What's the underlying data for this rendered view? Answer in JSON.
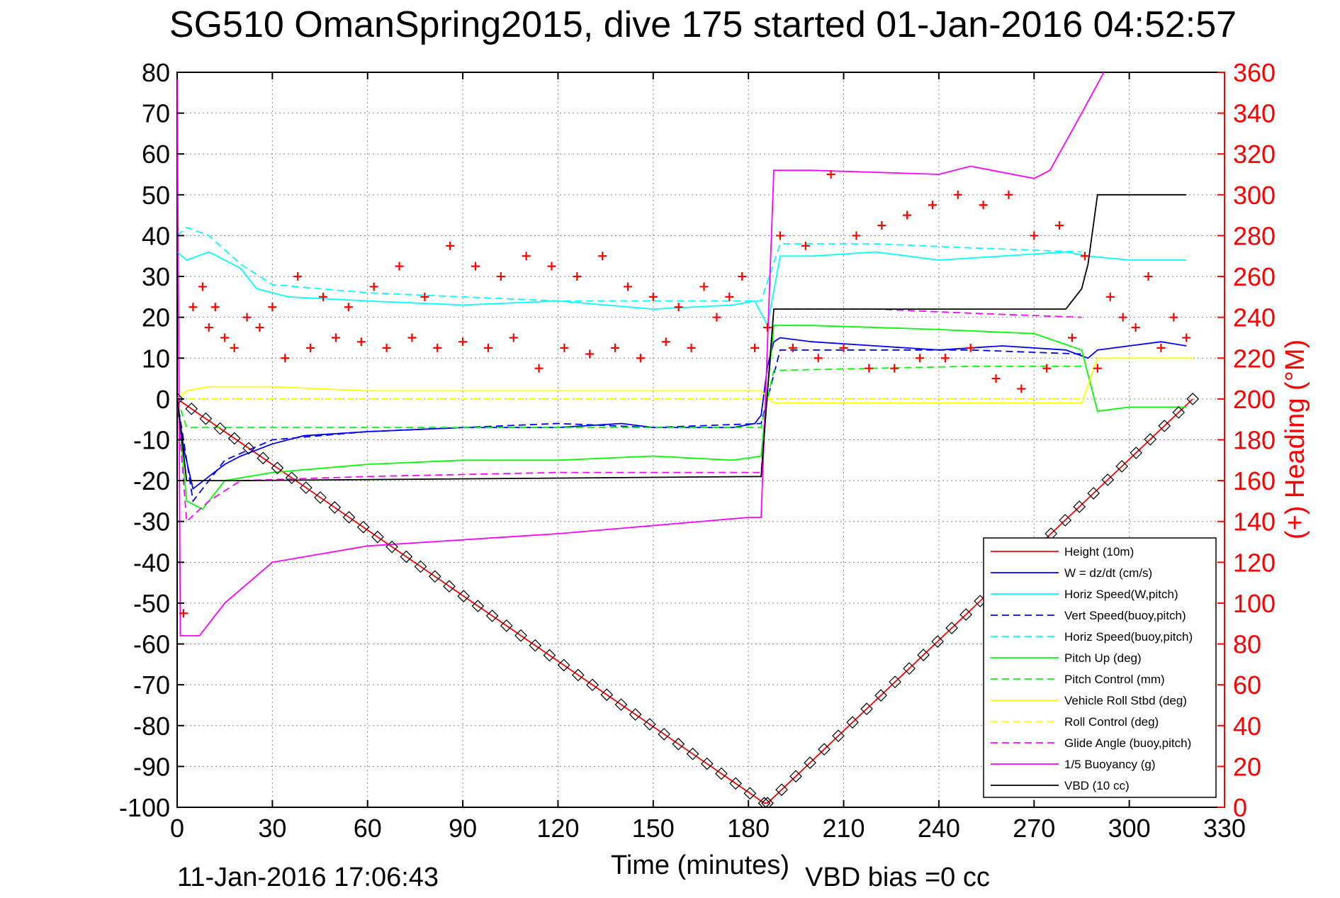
{
  "chart_data": {
    "type": "line",
    "title": "SG510 OmanSpring2015, dive 175 started 01-Jan-2016 04:52:57",
    "xlabel": "Time (minutes)",
    "ylabel_right": "(+) Heading (°M)",
    "footer_left": "11-Jan-2016 17:06:43",
    "footer_right": "VBD bias =0 cc",
    "xlim": [
      0,
      330
    ],
    "ylim_left": [
      -100,
      80
    ],
    "ylim_right": [
      0,
      360
    ],
    "x_ticks": [
      "0",
      "30",
      "60",
      "90",
      "120",
      "150",
      "180",
      "210",
      "240",
      "270",
      "300",
      "330"
    ],
    "y_ticks_left": [
      "80",
      "70",
      "60",
      "50",
      "40",
      "30",
      "20",
      "10",
      "0",
      "-10",
      "-20",
      "-30",
      "-40",
      "-50",
      "-60",
      "-70",
      "-80",
      "-90",
      "-100"
    ],
    "y_ticks_right": [
      "360",
      "340",
      "320",
      "300",
      "280",
      "260",
      "240",
      "220",
      "200",
      "180",
      "160",
      "140",
      "120",
      "100",
      "80",
      "60",
      "40",
      "20",
      "0"
    ],
    "grid": true,
    "legend_position": "bottom-right",
    "colors": {
      "height": "#ff0000",
      "w": "#0000ff",
      "horiz_speed": "#00ffff",
      "pitch": "#00ff00",
      "roll": "#ffff00",
      "glide": "#ff00ff",
      "buoyancy": "#ff00ff",
      "vbd": "#000000",
      "heading": "#ff0000",
      "right_axis": "#ff0000"
    },
    "series": [
      {
        "name": "Height (10m)",
        "color": "#ff0000",
        "dash": "solid",
        "x": [
          0,
          185,
          186,
          320
        ],
        "y": [
          0,
          -99,
          -99,
          0
        ]
      },
      {
        "name": "W = dz/dt (cm/s)",
        "color": "#0000ff",
        "dash": "solid",
        "x": [
          0,
          2,
          5,
          10,
          15,
          20,
          30,
          40,
          60,
          90,
          120,
          140,
          150,
          175,
          182,
          184,
          186,
          188,
          190,
          200,
          220,
          240,
          260,
          280,
          287,
          290,
          300,
          310,
          318
        ],
        "y": [
          0,
          -12,
          -22,
          -19,
          -16,
          -14,
          -11,
          -9,
          -8,
          -7,
          -7,
          -6,
          -7,
          -7,
          -6,
          -4,
          8,
          14,
          15,
          14,
          13,
          12,
          13,
          12,
          10,
          12,
          13,
          14,
          13
        ]
      },
      {
        "name": "Horiz Speed(W,pitch)",
        "color": "#00ffff",
        "dash": "solid",
        "x": [
          0,
          3,
          10,
          20,
          25,
          35,
          60,
          90,
          120,
          150,
          175,
          182,
          186,
          190,
          200,
          220,
          240,
          260,
          280,
          287,
          300,
          318
        ],
        "y": [
          36,
          34,
          36,
          32,
          27,
          25,
          24,
          23,
          24,
          22,
          23,
          24,
          18,
          35,
          35,
          36,
          34,
          35,
          36,
          35,
          34,
          34
        ]
      },
      {
        "name": "Vert Speed(buoy,pitch)",
        "color": "#0000ff",
        "dash": "dashed",
        "x": [
          0,
          5,
          15,
          30,
          60,
          90,
          120,
          150,
          184,
          190,
          220,
          250,
          285
        ],
        "y": [
          0,
          -25,
          -15,
          -10,
          -8,
          -7,
          -6,
          -7,
          -6,
          12,
          12,
          12,
          11
        ]
      },
      {
        "name": "Horiz Speed(buoy,pitch)",
        "color": "#00ffff",
        "dash": "dashed",
        "x": [
          0,
          3,
          10,
          20,
          30,
          60,
          90,
          120,
          150,
          184,
          190,
          220,
          250,
          285
        ],
        "y": [
          40,
          42,
          40,
          33,
          28,
          26,
          25,
          24,
          24,
          24,
          38,
          38,
          37,
          36
        ]
      },
      {
        "name": "Pitch Up (deg)",
        "color": "#00ff00",
        "dash": "solid",
        "x": [
          0,
          3,
          8,
          15,
          30,
          60,
          90,
          120,
          150,
          175,
          184,
          188,
          200,
          240,
          270,
          285,
          290,
          300,
          318
        ],
        "y": [
          0,
          -25,
          -27,
          -20,
          -18,
          -16,
          -15,
          -15,
          -14,
          -15,
          -14,
          18,
          18,
          17,
          16,
          12,
          -3,
          -2,
          -2
        ]
      },
      {
        "name": "Pitch Control (mm)",
        "color": "#00ff00",
        "dash": "dashed",
        "x": [
          0,
          3,
          30,
          184,
          188,
          250,
          285
        ],
        "y": [
          0,
          -7,
          -7,
          -7,
          7,
          8,
          8
        ]
      },
      {
        "name": "Vehicle Roll Stbd (deg)",
        "color": "#ffff00",
        "dash": "solid",
        "x": [
          0,
          3,
          10,
          30,
          60,
          90,
          120,
          150,
          184,
          188,
          220,
          250,
          285,
          290,
          320
        ],
        "y": [
          0,
          2,
          3,
          3,
          2,
          2,
          2,
          2,
          2,
          -1,
          -1,
          -1,
          -1,
          10,
          10
        ]
      },
      {
        "name": "Roll Control (deg)",
        "color": "#ffff00",
        "dash": "dashed",
        "x": [
          0,
          184,
          188,
          285
        ],
        "y": [
          0,
          0,
          0,
          0
        ]
      },
      {
        "name": "Glide Angle (buoy,pitch)",
        "color": "#ff00ff",
        "dash": "dashed",
        "x": [
          0,
          3,
          10,
          20,
          60,
          120,
          184,
          188,
          220,
          250,
          285
        ],
        "y": [
          0,
          -30,
          -25,
          -20,
          -19,
          -18,
          -18,
          22,
          22,
          21,
          20
        ]
      },
      {
        "name": "1/5 Buoyancy (g)",
        "color": "#ff00ff",
        "dash": "solid",
        "x": [
          0,
          1,
          7,
          15,
          30,
          60,
          120,
          180,
          184,
          188,
          200,
          240,
          250,
          270,
          275,
          285,
          292
        ],
        "y": [
          80,
          -58,
          -58,
          -50,
          -40,
          -36,
          -33,
          -29,
          -29,
          56,
          56,
          55,
          57,
          54,
          56,
          70,
          80
        ]
      },
      {
        "name": "VBD (10 cc)",
        "color": "#000000",
        "dash": "solid",
        "x": [
          0,
          3,
          20,
          184,
          188,
          280,
          285,
          287,
          290,
          318
        ],
        "y": [
          0,
          -20,
          -20,
          -19,
          22,
          22,
          27,
          33,
          50,
          50
        ]
      }
    ],
    "heading_series": {
      "name": "(+) Heading (°M)",
      "color": "#ff0000",
      "x": [
        2,
        5,
        8,
        10,
        12,
        15,
        18,
        22,
        26,
        30,
        34,
        38,
        42,
        46,
        50,
        54,
        58,
        62,
        66,
        70,
        74,
        78,
        82,
        86,
        90,
        94,
        98,
        102,
        106,
        110,
        114,
        118,
        122,
        126,
        130,
        134,
        138,
        142,
        146,
        150,
        154,
        158,
        162,
        166,
        170,
        174,
        178,
        182,
        186,
        190,
        194,
        198,
        202,
        206,
        210,
        214,
        218,
        222,
        226,
        230,
        234,
        238,
        242,
        246,
        250,
        254,
        258,
        262,
        266,
        270,
        274,
        278,
        282,
        286,
        290,
        294,
        298,
        302,
        306,
        310,
        314,
        318
      ],
      "y": [
        95,
        245,
        255,
        235,
        245,
        230,
        225,
        240,
        235,
        245,
        220,
        260,
        225,
        250,
        230,
        245,
        228,
        255,
        225,
        265,
        230,
        250,
        225,
        275,
        228,
        265,
        225,
        260,
        230,
        270,
        215,
        265,
        225,
        260,
        222,
        270,
        225,
        255,
        220,
        250,
        228,
        245,
        225,
        255,
        240,
        250,
        260,
        225,
        235,
        280,
        225,
        275,
        220,
        310,
        225,
        280,
        215,
        285,
        215,
        290,
        220,
        295,
        220,
        300,
        225,
        295,
        210,
        300,
        205,
        280,
        215,
        285,
        230,
        270,
        215,
        250,
        240,
        235,
        260,
        225,
        240,
        230
      ]
    }
  }
}
